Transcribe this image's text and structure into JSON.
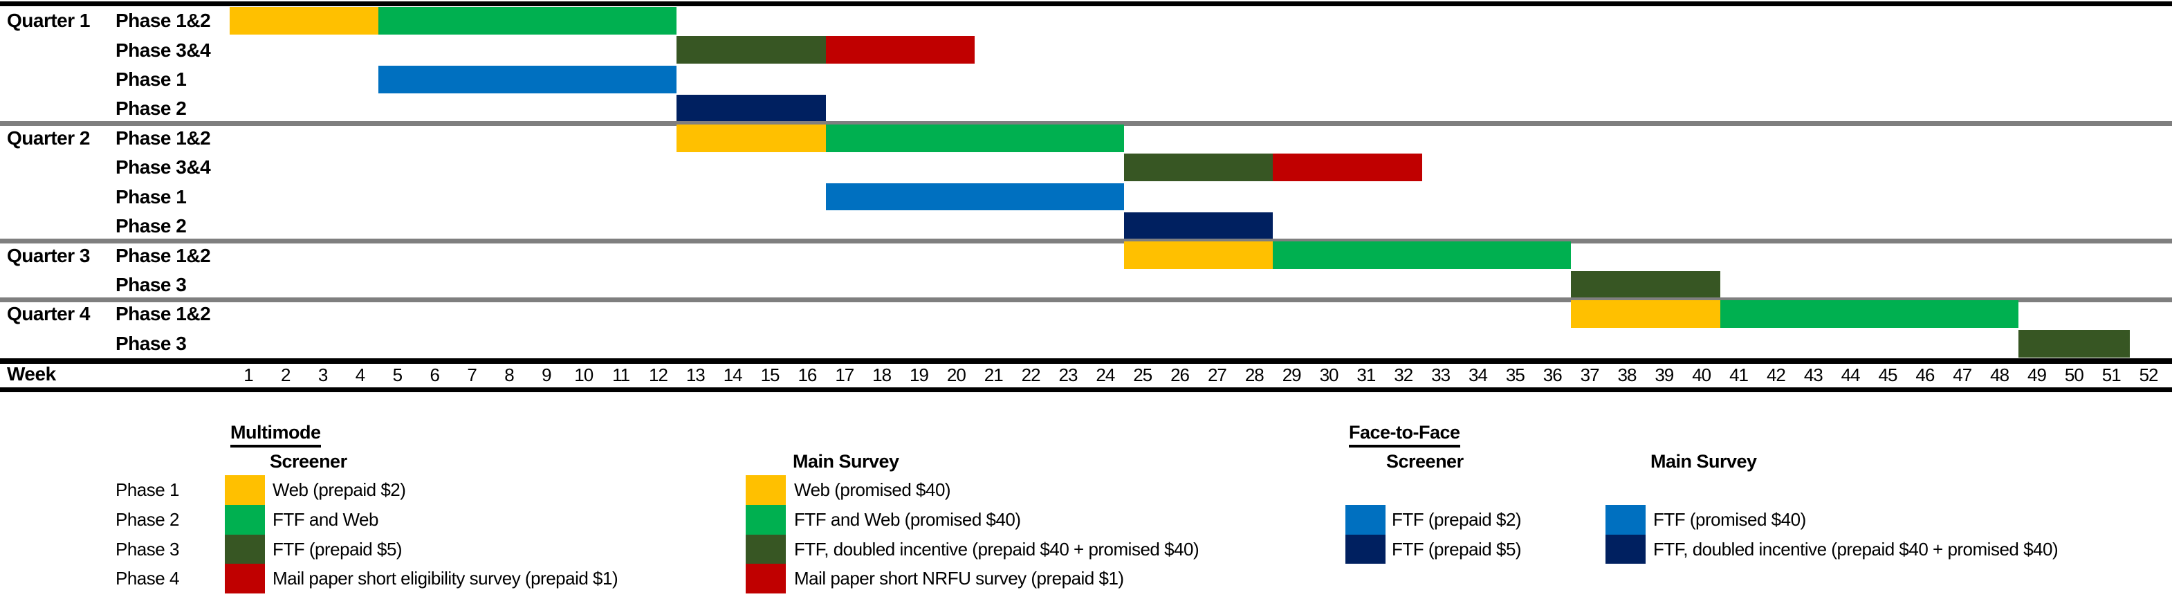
{
  "colors": {
    "gold": "#FFC000",
    "green": "#00B050",
    "dark_green": "#375623",
    "red": "#C00000",
    "blue": "#0070C0",
    "navy": "#002060",
    "divider_gray": "#7F7F7F",
    "line_black": "#000000"
  },
  "week_axis": {
    "label": "Week",
    "first_week": 1,
    "last_week": 52
  },
  "chart_data": {
    "type": "gantt",
    "time_unit": "week",
    "x_range": [
      1,
      52
    ],
    "rows": [
      {
        "quarter": "Quarter 1",
        "phase": "Phase 1&2",
        "bars": [
          {
            "color": "gold",
            "start_week": 1,
            "end_week": 4
          },
          {
            "color": "green",
            "start_week": 5,
            "end_week": 12
          }
        ],
        "divider_after": false
      },
      {
        "quarter": "",
        "phase": "Phase 3&4",
        "bars": [
          {
            "color": "dark_green",
            "start_week": 13,
            "end_week": 16
          },
          {
            "color": "red",
            "start_week": 17,
            "end_week": 20
          }
        ],
        "divider_after": false
      },
      {
        "quarter": "",
        "phase": "Phase 1",
        "bars": [
          {
            "color": "blue",
            "start_week": 5,
            "end_week": 12
          }
        ],
        "divider_after": false
      },
      {
        "quarter": "",
        "phase": "Phase 2",
        "bars": [
          {
            "color": "navy",
            "start_week": 13,
            "end_week": 16
          }
        ],
        "divider_after": true
      },
      {
        "quarter": "Quarter 2",
        "phase": "Phase 1&2",
        "bars": [
          {
            "color": "gold",
            "start_week": 13,
            "end_week": 16
          },
          {
            "color": "green",
            "start_week": 17,
            "end_week": 24
          }
        ],
        "divider_after": false
      },
      {
        "quarter": "",
        "phase": "Phase 3&4",
        "bars": [
          {
            "color": "dark_green",
            "start_week": 25,
            "end_week": 28
          },
          {
            "color": "red",
            "start_week": 29,
            "end_week": 32
          }
        ],
        "divider_after": false
      },
      {
        "quarter": "",
        "phase": "Phase 1",
        "bars": [
          {
            "color": "blue",
            "start_week": 17,
            "end_week": 24
          }
        ],
        "divider_after": false
      },
      {
        "quarter": "",
        "phase": "Phase 2",
        "bars": [
          {
            "color": "navy",
            "start_week": 25,
            "end_week": 28
          }
        ],
        "divider_after": true
      },
      {
        "quarter": "Quarter 3",
        "phase": "Phase 1&2",
        "bars": [
          {
            "color": "gold",
            "start_week": 25,
            "end_week": 28
          },
          {
            "color": "green",
            "start_week": 29,
            "end_week": 36
          }
        ],
        "divider_after": false
      },
      {
        "quarter": "",
        "phase": "Phase 3",
        "bars": [
          {
            "color": "dark_green",
            "start_week": 37,
            "end_week": 40
          }
        ],
        "divider_after": true
      },
      {
        "quarter": "Quarter 4",
        "phase": "Phase 1&2",
        "bars": [
          {
            "color": "gold",
            "start_week": 37,
            "end_week": 40
          },
          {
            "color": "green",
            "start_week": 41,
            "end_week": 48
          }
        ],
        "divider_after": false
      },
      {
        "quarter": "",
        "phase": "Phase 3",
        "bars": [
          {
            "color": "dark_green",
            "start_week": 49,
            "end_week": 51
          }
        ],
        "divider_after": false
      }
    ]
  },
  "legend": {
    "phase_labels": [
      "Phase 1",
      "Phase 2",
      "Phase 3",
      "Phase 4"
    ],
    "groups": [
      {
        "heading": "Multimode",
        "heading_underlined": true,
        "subheading": "Screener",
        "items": [
          {
            "color": "gold",
            "label": "Web (prepaid $2)",
            "row": 1
          },
          {
            "color": "green",
            "label": "FTF and Web",
            "row": 2
          },
          {
            "color": "dark_green",
            "label": "FTF (prepaid $5)",
            "row": 3
          },
          {
            "color": "red",
            "label": "Mail paper short eligibility survey (prepaid $1)",
            "row": 4
          }
        ]
      },
      {
        "heading": "",
        "heading_underlined": false,
        "subheading": "Main Survey",
        "items": [
          {
            "color": "gold",
            "label": "Web (promised $40)",
            "row": 1
          },
          {
            "color": "green",
            "label": "FTF and Web (promised $40)",
            "row": 2
          },
          {
            "color": "dark_green",
            "label": "FTF, doubled incentive (prepaid $40 + promised $40)",
            "row": 3
          },
          {
            "color": "red",
            "label": "Mail paper short NRFU survey (prepaid $1)",
            "row": 4
          }
        ]
      },
      {
        "heading": "Face-to-Face",
        "heading_underlined": true,
        "subheading": "Screener",
        "items": [
          {
            "color": "blue",
            "label": "FTF (prepaid $2)",
            "row": 2
          },
          {
            "color": "navy",
            "label": "FTF (prepaid $5)",
            "row": 3
          }
        ]
      },
      {
        "heading": "",
        "heading_underlined": false,
        "subheading": "Main Survey",
        "items": [
          {
            "color": "blue",
            "label": "FTF (promised $40)",
            "row": 2
          },
          {
            "color": "navy",
            "label": "FTF, doubled incentive (prepaid $40 + promised $40)",
            "row": 3
          }
        ]
      }
    ]
  }
}
